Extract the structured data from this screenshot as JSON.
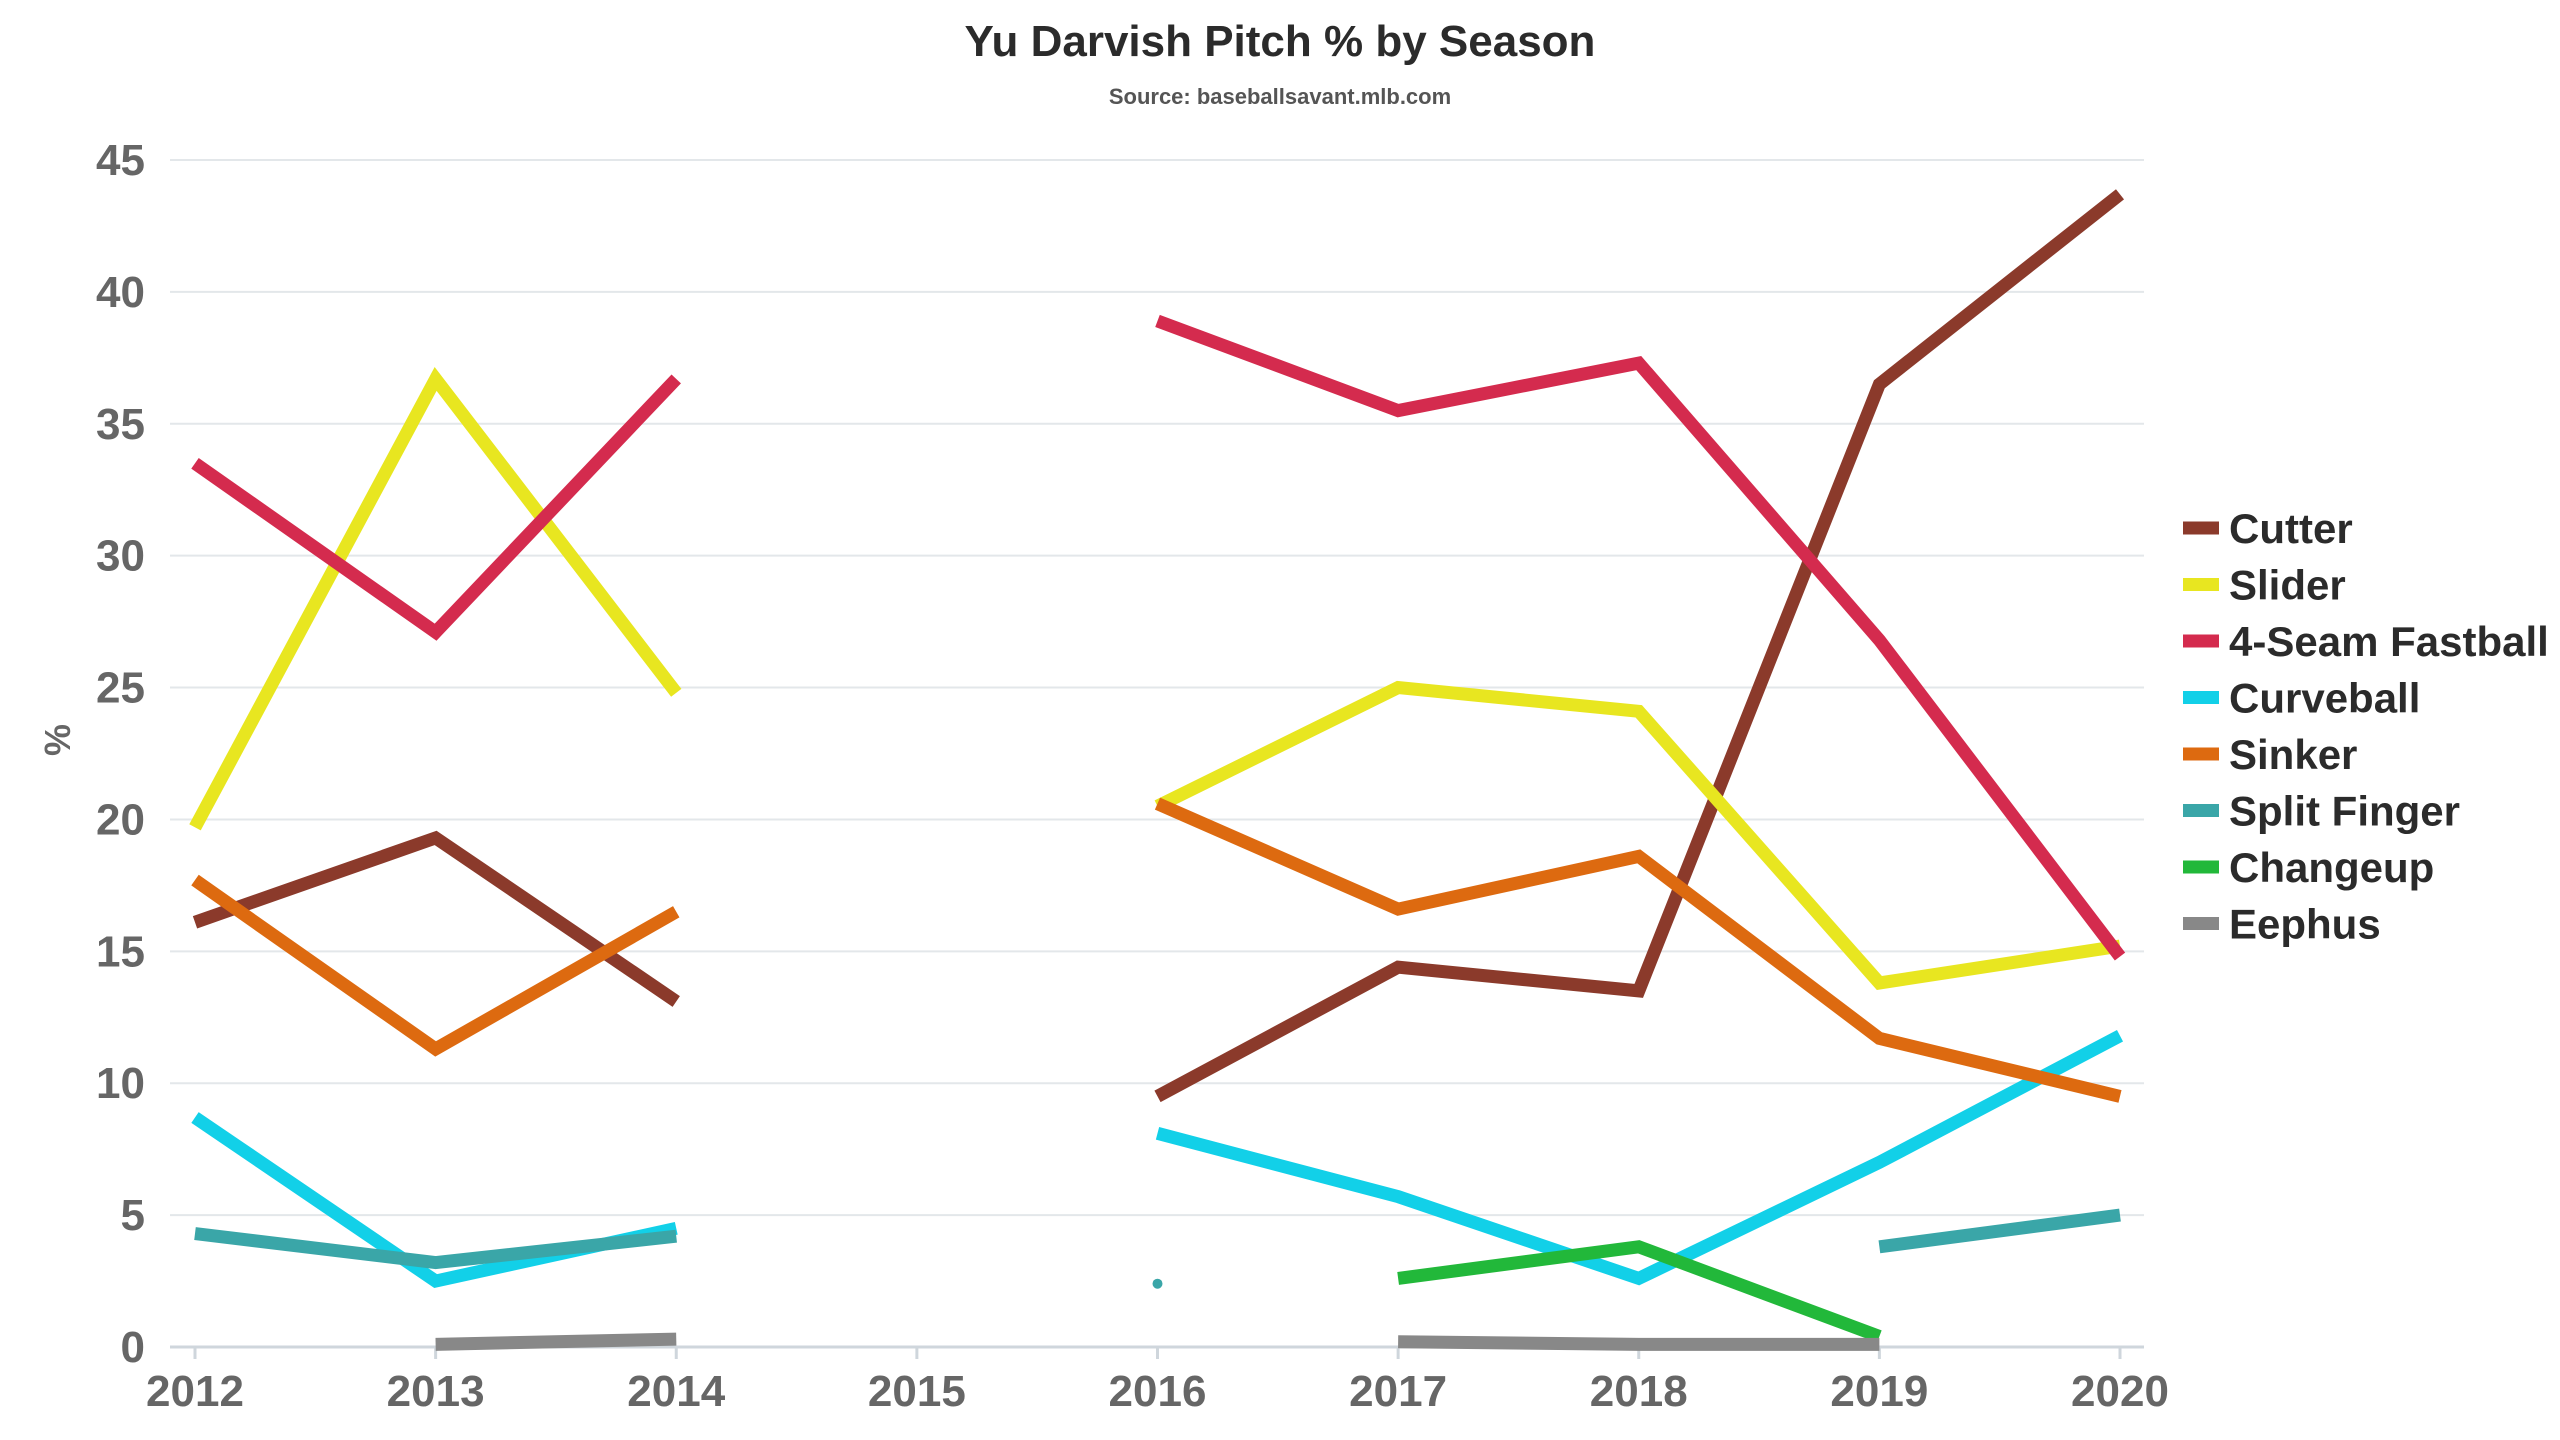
{
  "chart_data": {
    "type": "line",
    "title": "Yu Darvish Pitch % by Season",
    "subtitle": "Source: baseballsavant.mlb.com",
    "xlabel": "",
    "ylabel": "%",
    "x": [
      2012,
      2013,
      2014,
      2015,
      2016,
      2017,
      2018,
      2019,
      2020
    ],
    "x_tick_labels": [
      "2012",
      "2013",
      "2014",
      "2015",
      "2016",
      "2017",
      "2018",
      "2019",
      "2020"
    ],
    "y_ticks": [
      0,
      5,
      10,
      15,
      20,
      25,
      30,
      35,
      40,
      45
    ],
    "y_tick_labels": [
      "0",
      "5",
      "10",
      "15",
      "20",
      "25",
      "30",
      "35",
      "40",
      "45"
    ],
    "ylim": [
      0,
      45
    ],
    "grid": true,
    "legend_position": "right",
    "series": [
      {
        "name": "Cutter",
        "color": "#8b3a2b",
        "values": [
          16.1,
          19.3,
          13.1,
          null,
          9.5,
          14.4,
          13.5,
          36.5,
          43.7
        ]
      },
      {
        "name": "Slider",
        "color": "#e8e620",
        "values": [
          19.7,
          36.7,
          24.8,
          null,
          20.5,
          25.0,
          24.1,
          13.8,
          15.2
        ]
      },
      {
        "name": "4-Seam Fastball",
        "color": "#d42b4e",
        "values": [
          33.5,
          27.1,
          36.7,
          null,
          38.9,
          35.5,
          37.3,
          26.8,
          14.8
        ]
      },
      {
        "name": "Curveball",
        "color": "#12d0e8",
        "values": [
          8.7,
          2.5,
          4.5,
          null,
          8.1,
          5.7,
          2.6,
          7.0,
          11.8
        ]
      },
      {
        "name": "Sinker",
        "color": "#dd6a10",
        "values": [
          17.7,
          11.3,
          16.5,
          null,
          20.6,
          16.6,
          18.6,
          11.7,
          9.5
        ]
      },
      {
        "name": "Split Finger",
        "color": "#3aa6a8",
        "values": [
          4.3,
          3.2,
          4.2,
          null,
          2.4,
          null,
          null,
          3.8,
          5.0
        ]
      },
      {
        "name": "Changeup",
        "color": "#22b83a",
        "values": [
          null,
          null,
          null,
          null,
          null,
          2.6,
          3.8,
          0.4,
          null
        ]
      },
      {
        "name": "Eephus",
        "color": "#888888",
        "values": [
          null,
          0.1,
          0.3,
          null,
          null,
          0.2,
          0.1,
          0.1,
          null
        ]
      }
    ]
  }
}
